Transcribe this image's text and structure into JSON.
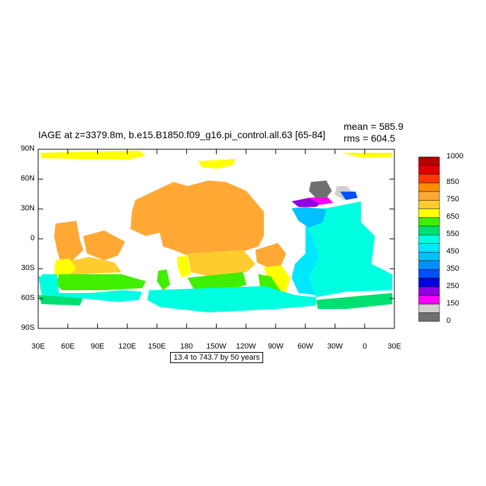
{
  "header": {
    "title": "IAGE at z=3379.8m, b.e15.B1850.f09_g16.pi_control.all.63 [65-84]",
    "mean": "mean = 585.9",
    "rms": "rms = 604.5"
  },
  "footer": {
    "range_text": "13.4 to 743.7 by 50 years"
  },
  "axes": {
    "y_labels": [
      "90N",
      "60N",
      "30N",
      "0",
      "30S",
      "60S",
      "90S"
    ],
    "x_labels": [
      "30E",
      "60E",
      "90E",
      "120E",
      "150E",
      "180",
      "150W",
      "120W",
      "90W",
      "60W",
      "30W",
      "0",
      "30E"
    ]
  },
  "colorbar": {
    "labels": [
      "1000",
      "850",
      "750",
      "650",
      "550",
      "450",
      "350",
      "250",
      "150",
      "0"
    ],
    "colors": [
      "#b40000",
      "#e00000",
      "#ff3a00",
      "#ff8c00",
      "#ffa834",
      "#ffcc30",
      "#ffff00",
      "#40ee00",
      "#00e070",
      "#00ffe0",
      "#00e8ff",
      "#00c0ff",
      "#0090ff",
      "#0050ff",
      "#0000e0",
      "#9000e0",
      "#ff00ff",
      "#d0d0d0",
      "#707070"
    ]
  },
  "map_colors": {
    "orange": "#ffa834",
    "light_orange": "#ffcc30",
    "yellow": "#ffff00",
    "green": "#40ee00",
    "sea_green": "#00e070",
    "cyan": "#00ffe0",
    "sky": "#00e8ff",
    "blue_light": "#00c0ff",
    "blue": "#0090ff",
    "blue_dark": "#0050ff",
    "purple": "#9000e0",
    "magenta": "#ff00ff",
    "grey_light": "#d0d0d0",
    "grey_dark": "#707070"
  }
}
